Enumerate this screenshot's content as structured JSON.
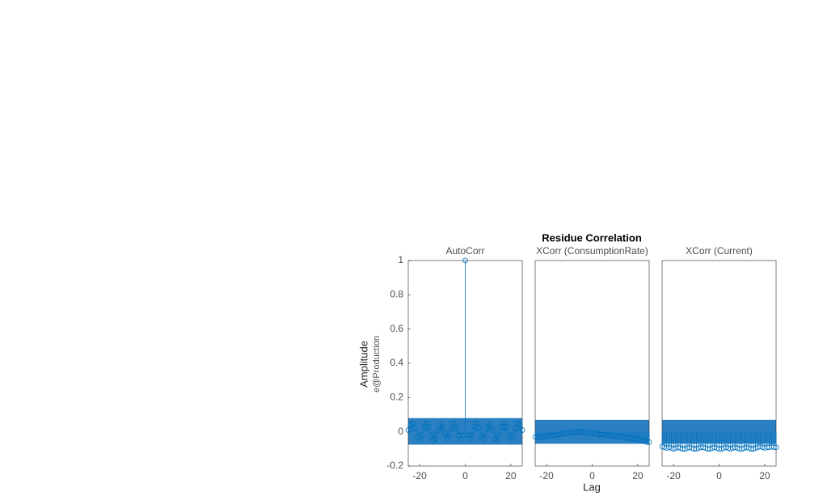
{
  "title": "Residue Correlation",
  "xlabel": "Lag",
  "ylabel": "Amplitude",
  "ylabel_sub": "e@Production",
  "chart_data": [
    {
      "type": "stem",
      "title": "AutoCorr",
      "color": "#0072bd",
      "band_color": "#2a80c2",
      "band": [
        -0.075,
        0.08
      ],
      "x": [
        -25,
        -24,
        -23,
        -22,
        -21,
        -20,
        -19,
        -18,
        -17,
        -16,
        -15,
        -14,
        -13,
        -12,
        -11,
        -10,
        -9,
        -8,
        -7,
        -6,
        -5,
        -4,
        -3,
        -2,
        -1,
        0,
        1,
        2,
        3,
        4,
        5,
        6,
        7,
        8,
        9,
        10,
        11,
        12,
        13,
        14,
        15,
        16,
        17,
        18,
        19,
        20,
        21,
        22,
        23,
        24,
        25
      ],
      "values": [
        0.01,
        0.04,
        0.05,
        0.02,
        -0.03,
        -0.05,
        -0.02,
        0.03,
        0.05,
        0.03,
        -0.02,
        -0.05,
        -0.04,
        0.01,
        0.04,
        0.03,
        -0.01,
        -0.04,
        -0.03,
        0.02,
        0.05,
        0.03,
        -0.02,
        -0.04,
        -0.02,
        1,
        -0.02,
        -0.04,
        -0.02,
        0.03,
        0.05,
        0.02,
        -0.03,
        -0.04,
        -0.01,
        0.03,
        0.04,
        0.01,
        -0.04,
        -0.05,
        -0.02,
        0.03,
        0.05,
        0.03,
        -0.02,
        -0.05,
        -0.03,
        0.02,
        0.05,
        0.04,
        0.01
      ],
      "xlim": [
        -25,
        25
      ],
      "xticks": [
        -20,
        0,
        20
      ],
      "ylim": [
        -0.2,
        1
      ],
      "yticks": [
        -0.2,
        0,
        0.2,
        0.4,
        0.6,
        0.8,
        1
      ]
    },
    {
      "type": "stem",
      "title": "XCorr (ConsumptionRate)",
      "color": "#0072bd",
      "band_color": "#2a80c2",
      "band": [
        -0.07,
        0.07
      ],
      "x": [
        -25,
        -24,
        -23,
        -22,
        -21,
        -20,
        -19,
        -18,
        -17,
        -16,
        -15,
        -14,
        -13,
        -12,
        -11,
        -10,
        -9,
        -8,
        -7,
        -6,
        -5,
        -4,
        -3,
        -2,
        -1,
        0,
        1,
        2,
        3,
        4,
        5,
        6,
        7,
        8,
        9,
        10,
        11,
        12,
        13,
        14,
        15,
        16,
        17,
        18,
        19,
        20,
        21,
        22,
        23,
        24,
        25
      ],
      "values": [
        -0.03,
        -0.03,
        -0.035,
        -0.03,
        -0.03,
        -0.025,
        -0.025,
        -0.02,
        -0.02,
        -0.02,
        -0.015,
        -0.015,
        -0.01,
        -0.01,
        -0.01,
        -0.005,
        -0.005,
        0,
        0,
        0,
        0,
        0,
        -0.005,
        -0.005,
        -0.005,
        -0.01,
        -0.01,
        -0.01,
        -0.015,
        -0.015,
        -0.015,
        -0.02,
        -0.02,
        -0.02,
        -0.025,
        -0.025,
        -0.025,
        -0.03,
        -0.03,
        -0.03,
        -0.035,
        -0.035,
        -0.04,
        -0.04,
        -0.04,
        -0.045,
        -0.05,
        -0.05,
        -0.055,
        -0.06,
        -0.06
      ],
      "xlim": [
        -25,
        25
      ],
      "xticks": [
        -20,
        0,
        20
      ],
      "ylim": [
        -0.2,
        1
      ]
    },
    {
      "type": "stem",
      "title": "XCorr (Current)",
      "color": "#0072bd",
      "band_color": "#2a80c2",
      "band": [
        -0.07,
        0.07
      ],
      "x": [
        -25,
        -24,
        -23,
        -22,
        -21,
        -20,
        -19,
        -18,
        -17,
        -16,
        -15,
        -14,
        -13,
        -12,
        -11,
        -10,
        -9,
        -8,
        -7,
        -6,
        -5,
        -4,
        -3,
        -2,
        -1,
        0,
        1,
        2,
        3,
        4,
        5,
        6,
        7,
        8,
        9,
        10,
        11,
        12,
        13,
        14,
        15,
        16,
        17,
        18,
        19,
        20,
        21,
        22,
        23,
        24,
        25
      ],
      "values": [
        -0.085,
        -0.09,
        -0.095,
        -0.09,
        -0.095,
        -0.1,
        -0.095,
        -0.09,
        -0.095,
        -0.1,
        -0.1,
        -0.095,
        -0.09,
        -0.095,
        -0.1,
        -0.1,
        -0.095,
        -0.09,
        -0.09,
        -0.095,
        -0.1,
        -0.1,
        -0.095,
        -0.09,
        -0.095,
        -0.1,
        -0.1,
        -0.095,
        -0.09,
        -0.095,
        -0.1,
        -0.095,
        -0.09,
        -0.095,
        -0.1,
        -0.1,
        -0.095,
        -0.09,
        -0.095,
        -0.1,
        -0.1,
        -0.095,
        -0.09,
        -0.085,
        -0.09,
        -0.095,
        -0.09,
        -0.09,
        -0.085,
        -0.09,
        -0.09
      ],
      "xlim": [
        -25,
        25
      ],
      "xticks": [
        -20,
        0,
        20
      ],
      "ylim": [
        -0.2,
        1
      ]
    }
  ]
}
